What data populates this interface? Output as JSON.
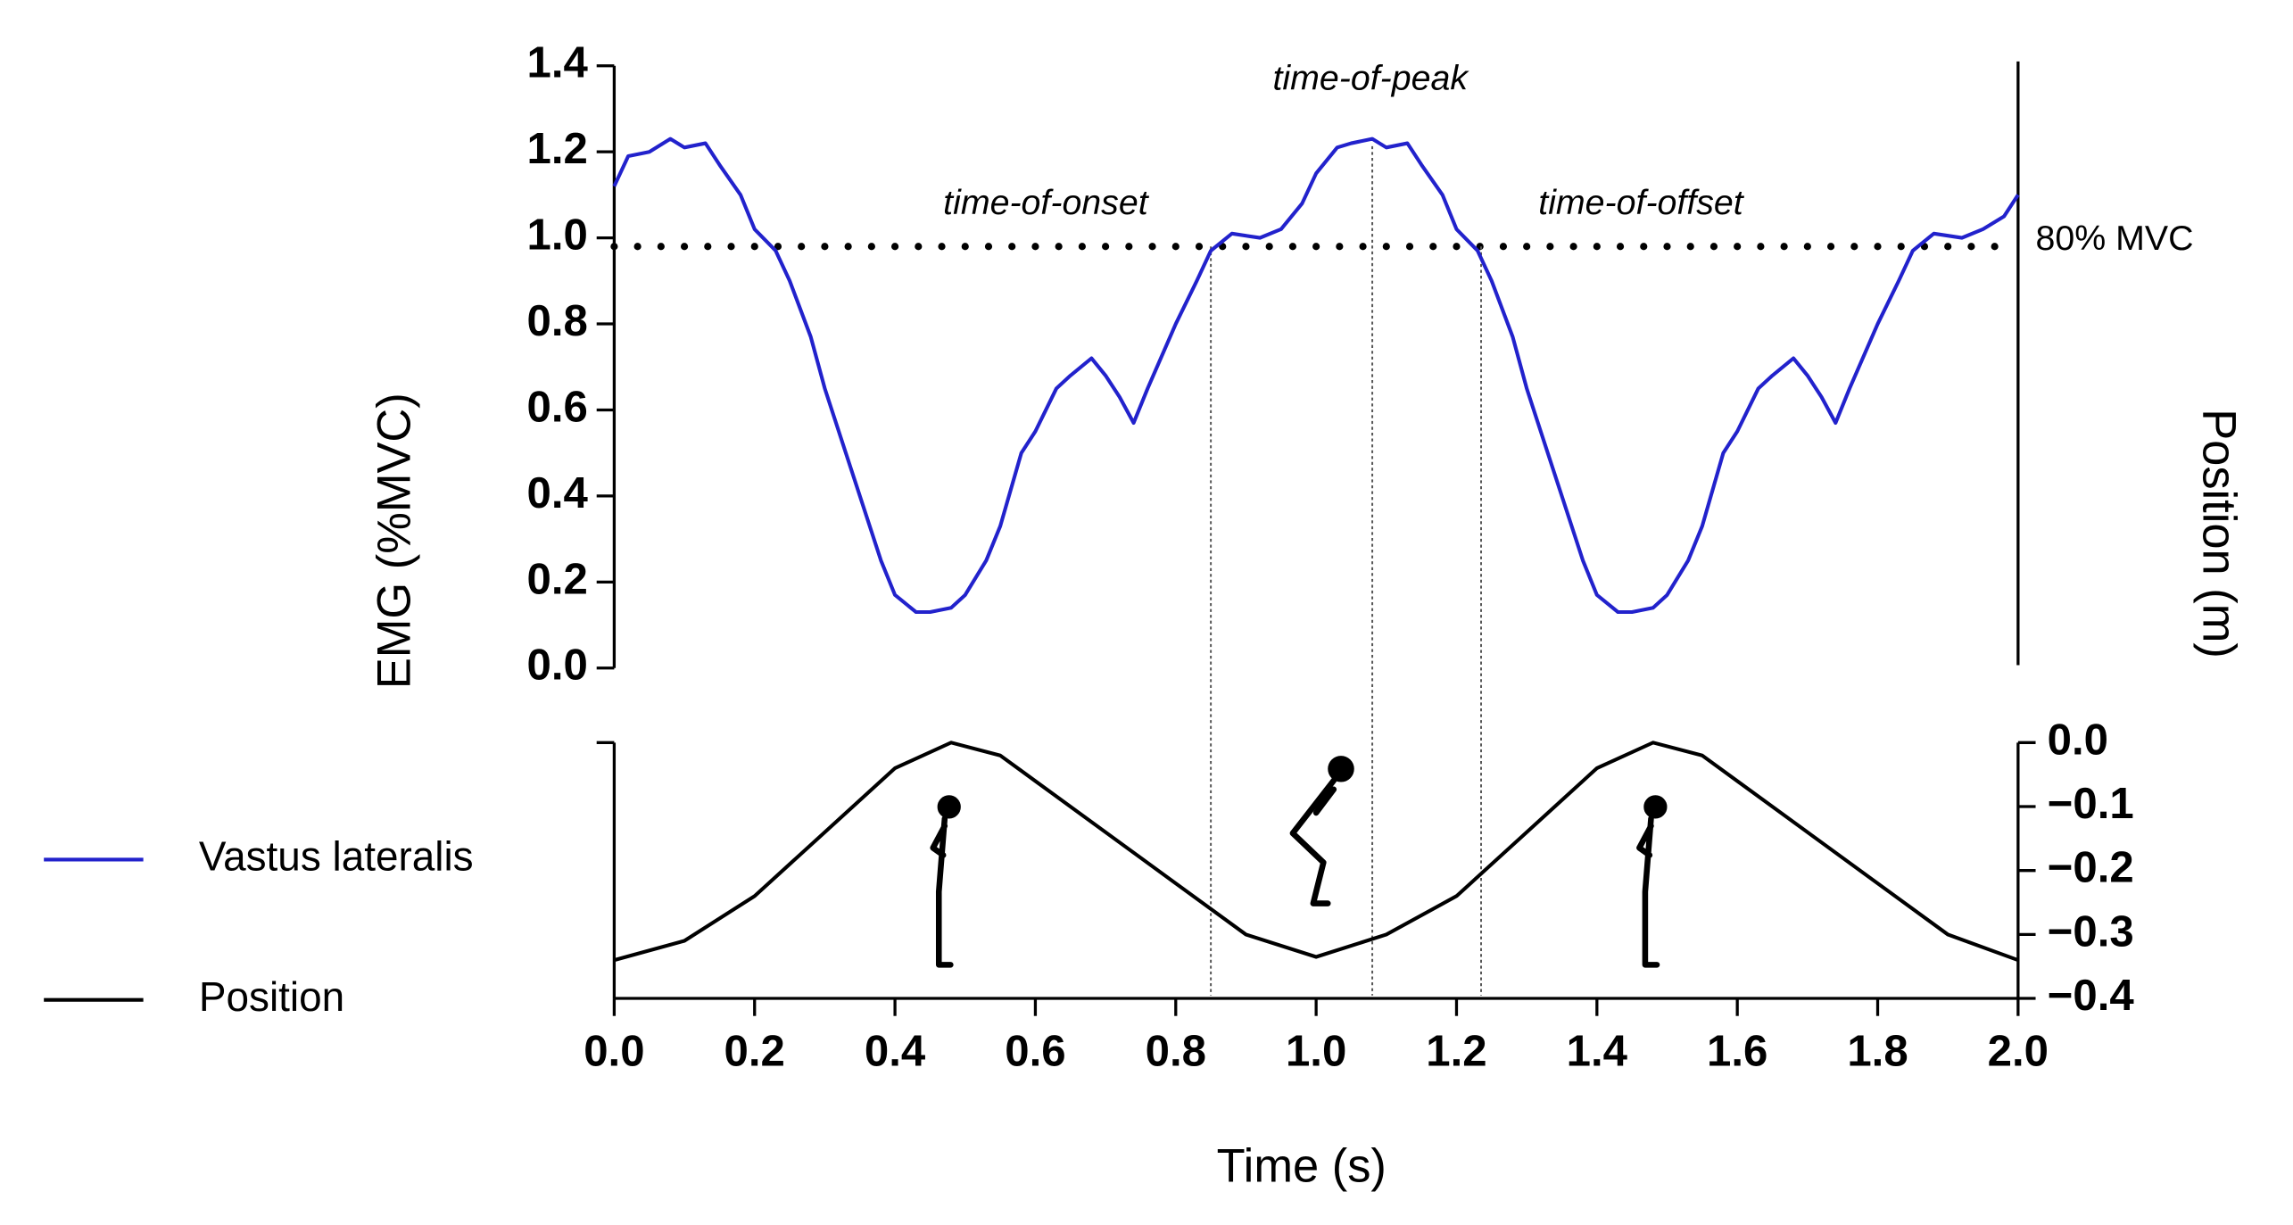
{
  "chart_data": {
    "type": "line",
    "xlabel": "Time (s)",
    "ylabel": "EMG (%MVC)",
    "y2label": "Position (m)",
    "xlim": [
      0,
      2
    ],
    "xticks": [
      {
        "value": 0,
        "label": "0.0"
      },
      {
        "value": 0.2,
        "label": "0.2"
      },
      {
        "value": 0.4,
        "label": "0.4"
      },
      {
        "value": 0.6,
        "label": "0.6"
      },
      {
        "value": 0.8,
        "label": "0.8"
      },
      {
        "value": 1,
        "label": "1.0"
      },
      {
        "value": 1.2,
        "label": "1.2"
      },
      {
        "value": 1.4,
        "label": "1.4"
      },
      {
        "value": 1.6,
        "label": "1.6"
      },
      {
        "value": 1.8,
        "label": "1.8"
      },
      {
        "value": 2,
        "label": "2.0"
      }
    ],
    "ylim": [
      0,
      1.4
    ],
    "yticks": [
      {
        "value": 0,
        "label": "0.0"
      },
      {
        "value": 0.2,
        "label": "0.2"
      },
      {
        "value": 0.4,
        "label": "0.4"
      },
      {
        "value": 0.6,
        "label": "0.6"
      },
      {
        "value": 0.8,
        "label": "0.8"
      },
      {
        "value": 1,
        "label": "1.0"
      },
      {
        "value": 1.2,
        "label": "1.2"
      },
      {
        "value": 1.4,
        "label": "1.4"
      }
    ],
    "y2lim": [
      -0.4,
      0
    ],
    "y2ticks": [
      {
        "value": 0,
        "label": "0.0"
      },
      {
        "value": -0.1,
        "label": "−0.1"
      },
      {
        "value": -0.2,
        "label": "−0.2"
      },
      {
        "value": -0.3,
        "label": "−0.3"
      },
      {
        "value": -0.4,
        "label": "−0.4"
      }
    ],
    "threshold": {
      "value": 0.98,
      "label": "80% MVC"
    },
    "annotations": [
      {
        "text": "time-of-onset",
        "x": 0.85
      },
      {
        "text": "time-of-peak",
        "x": 1.08
      },
      {
        "text": "time-of-offset",
        "x": 1.235
      }
    ],
    "series": [
      {
        "name": "Vastus lateralis",
        "color": "#2222cc",
        "x": [
          0,
          0.02,
          0.05,
          0.08,
          0.1,
          0.13,
          0.15,
          0.18,
          0.2,
          0.23,
          0.25,
          0.28,
          0.3,
          0.33,
          0.35,
          0.38,
          0.4,
          0.43,
          0.45,
          0.48,
          0.5,
          0.53,
          0.55,
          0.58,
          0.6,
          0.63,
          0.65,
          0.68,
          0.7,
          0.72,
          0.74,
          0.76,
          0.8,
          0.83,
          0.85,
          0.88,
          0.92,
          0.95,
          0.98,
          1.0,
          1.03,
          1.05,
          1.08,
          1.1,
          1.13,
          1.15,
          1.18,
          1.2,
          1.23,
          1.25,
          1.28,
          1.3,
          1.33,
          1.35,
          1.38,
          1.4,
          1.43,
          1.45,
          1.48,
          1.5,
          1.53,
          1.55,
          1.58,
          1.6,
          1.63,
          1.65,
          1.68,
          1.7,
          1.72,
          1.74,
          1.76,
          1.8,
          1.83,
          1.85,
          1.88,
          1.92,
          1.95,
          1.98,
          2.0
        ],
        "values": [
          1.12,
          1.19,
          1.2,
          1.23,
          1.21,
          1.22,
          1.17,
          1.1,
          1.02,
          0.97,
          0.9,
          0.77,
          0.65,
          0.5,
          0.4,
          0.25,
          0.17,
          0.13,
          0.13,
          0.14,
          0.17,
          0.25,
          0.33,
          0.5,
          0.55,
          0.65,
          0.68,
          0.72,
          0.68,
          0.63,
          0.57,
          0.65,
          0.8,
          0.9,
          0.97,
          1.01,
          1.0,
          1.02,
          1.08,
          1.15,
          1.21,
          1.22,
          1.23,
          1.21,
          1.22,
          1.17,
          1.1,
          1.02,
          0.97,
          0.9,
          0.77,
          0.65,
          0.5,
          0.4,
          0.25,
          0.17,
          0.13,
          0.13,
          0.14,
          0.17,
          0.25,
          0.33,
          0.5,
          0.55,
          0.65,
          0.68,
          0.72,
          0.68,
          0.63,
          0.57,
          0.65,
          0.8,
          0.9,
          0.97,
          1.01,
          1.0,
          1.02,
          1.05,
          1.1
        ]
      },
      {
        "name": "Position",
        "color": "#000000",
        "axis": "y2",
        "x": [
          0,
          0.1,
          0.2,
          0.3,
          0.4,
          0.48,
          0.55,
          0.6,
          0.7,
          0.8,
          0.9,
          1.0,
          1.1,
          1.2,
          1.3,
          1.4,
          1.48,
          1.55,
          1.6,
          1.7,
          1.8,
          1.9,
          2.0
        ],
        "values": [
          -0.34,
          -0.31,
          -0.24,
          -0.14,
          -0.04,
          0,
          -0.02,
          -0.06,
          -0.14,
          -0.22,
          -0.3,
          -0.335,
          -0.3,
          -0.24,
          -0.14,
          -0.04,
          0,
          -0.02,
          -0.06,
          -0.14,
          -0.22,
          -0.3,
          -0.34
        ]
      }
    ]
  }
}
